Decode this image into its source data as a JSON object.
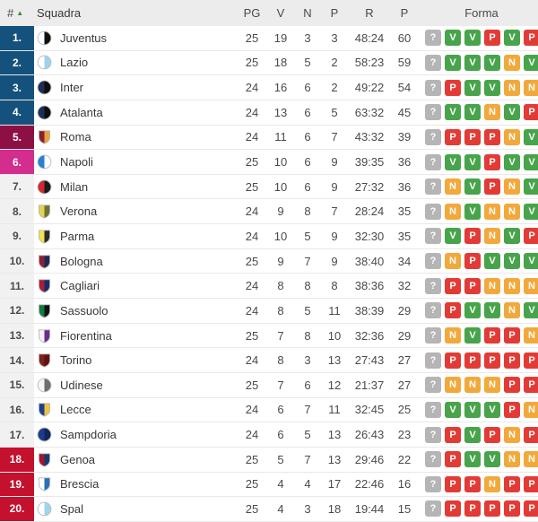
{
  "table": {
    "header": {
      "num": "#",
      "sort_icon": "▲",
      "team": "Squadra",
      "pg": "PG",
      "v": "V",
      "n": "N",
      "p": "P",
      "r": "R",
      "pts": "P",
      "form": "Forma"
    },
    "colors": {
      "sort_arrow": "#44883c",
      "zone_colors": {
        "blue": "#14527d",
        "maroon": "#8d1044",
        "magenta": "#d32d8d",
        "red": "#c3112e"
      },
      "form_colors": {
        "?": "#b5b5b5",
        "V": "#47a44b",
        "N": "#f2a93b",
        "P": "#e23b35"
      }
    },
    "standings": [
      {
        "pos": "1.",
        "zone": "blue",
        "team": "Juventus",
        "logo_shape": "circle",
        "logo_colors": [
          "#ffffff",
          "#111111"
        ],
        "pg": "25",
        "v": "19",
        "n": "3",
        "p": "3",
        "r": "48:24",
        "pts": "60",
        "form": [
          "?",
          "V",
          "V",
          "P",
          "V",
          "P"
        ]
      },
      {
        "pos": "2.",
        "zone": "blue",
        "team": "Lazio",
        "logo_shape": "circle",
        "logo_colors": [
          "#ffffff",
          "#9ed3f0"
        ],
        "pg": "25",
        "v": "18",
        "n": "5",
        "p": "2",
        "r": "58:23",
        "pts": "59",
        "form": [
          "?",
          "V",
          "V",
          "V",
          "N",
          "V"
        ]
      },
      {
        "pos": "3.",
        "zone": "blue",
        "team": "Inter",
        "logo_shape": "circle",
        "logo_colors": [
          "#1b2c55",
          "#0e0e0e"
        ],
        "pg": "24",
        "v": "16",
        "n": "6",
        "p": "2",
        "r": "49:22",
        "pts": "54",
        "form": [
          "?",
          "P",
          "V",
          "V",
          "N",
          "N"
        ]
      },
      {
        "pos": "4.",
        "zone": "blue",
        "team": "Atalanta",
        "logo_shape": "circle",
        "logo_colors": [
          "#1c2d57",
          "#0d0d0d"
        ],
        "pg": "24",
        "v": "13",
        "n": "6",
        "p": "5",
        "r": "63:32",
        "pts": "45",
        "form": [
          "?",
          "V",
          "V",
          "N",
          "V",
          "P"
        ]
      },
      {
        "pos": "5.",
        "zone": "maroon",
        "team": "Roma",
        "logo_shape": "shield",
        "logo_colors": [
          "#8f1f2c",
          "#e8a33d"
        ],
        "pg": "24",
        "v": "11",
        "n": "6",
        "p": "7",
        "r": "43:32",
        "pts": "39",
        "form": [
          "?",
          "P",
          "P",
          "P",
          "N",
          "V"
        ]
      },
      {
        "pos": "6.",
        "zone": "magenta",
        "team": "Napoli",
        "logo_shape": "circle",
        "logo_colors": [
          "#2a7fd4",
          "#ffffff"
        ],
        "pg": "25",
        "v": "10",
        "n": "6",
        "p": "9",
        "r": "39:35",
        "pts": "36",
        "form": [
          "?",
          "V",
          "V",
          "P",
          "V",
          "V"
        ]
      },
      {
        "pos": "7.",
        "zone": null,
        "team": "Milan",
        "logo_shape": "circle",
        "logo_colors": [
          "#d22631",
          "#1a1a1a"
        ],
        "pg": "25",
        "v": "10",
        "n": "6",
        "p": "9",
        "r": "27:32",
        "pts": "36",
        "form": [
          "?",
          "N",
          "V",
          "P",
          "N",
          "V"
        ]
      },
      {
        "pos": "8.",
        "zone": null,
        "team": "Verona",
        "logo_shape": "shield",
        "logo_colors": [
          "#e3d34f",
          "#6b7232"
        ],
        "pg": "24",
        "v": "9",
        "n": "8",
        "p": "7",
        "r": "28:24",
        "pts": "35",
        "form": [
          "?",
          "N",
          "V",
          "N",
          "N",
          "V"
        ]
      },
      {
        "pos": "9.",
        "zone": null,
        "team": "Parma",
        "logo_shape": "shield",
        "logo_colors": [
          "#f2e24e",
          "#2a2a2a"
        ],
        "pg": "24",
        "v": "10",
        "n": "5",
        "p": "9",
        "r": "32:30",
        "pts": "35",
        "form": [
          "?",
          "V",
          "P",
          "N",
          "V",
          "P"
        ]
      },
      {
        "pos": "10.",
        "zone": null,
        "team": "Bologna",
        "logo_shape": "shield",
        "logo_colors": [
          "#8f1f35",
          "#1b2a52"
        ],
        "pg": "25",
        "v": "9",
        "n": "7",
        "p": "9",
        "r": "38:40",
        "pts": "34",
        "form": [
          "?",
          "N",
          "P",
          "V",
          "V",
          "V"
        ]
      },
      {
        "pos": "11.",
        "zone": null,
        "team": "Cagliari",
        "logo_shape": "shield",
        "logo_colors": [
          "#a32035",
          "#1b2a6b"
        ],
        "pg": "24",
        "v": "8",
        "n": "8",
        "p": "8",
        "r": "38:36",
        "pts": "32",
        "form": [
          "?",
          "P",
          "P",
          "N",
          "N",
          "N"
        ]
      },
      {
        "pos": "12.",
        "zone": null,
        "team": "Sassuolo",
        "logo_shape": "shield",
        "logo_colors": [
          "#0e7c3f",
          "#111111"
        ],
        "pg": "24",
        "v": "8",
        "n": "5",
        "p": "11",
        "r": "38:39",
        "pts": "29",
        "form": [
          "?",
          "P",
          "V",
          "V",
          "N",
          "V"
        ]
      },
      {
        "pos": "13.",
        "zone": null,
        "team": "Fiorentina",
        "logo_shape": "shield",
        "logo_colors": [
          "#f3f3f3",
          "#6a2c91"
        ],
        "pg": "25",
        "v": "7",
        "n": "8",
        "p": "10",
        "r": "32:36",
        "pts": "29",
        "form": [
          "?",
          "N",
          "V",
          "P",
          "P",
          "N"
        ]
      },
      {
        "pos": "14.",
        "zone": null,
        "team": "Torino",
        "logo_shape": "shield",
        "logo_colors": [
          "#7e2020",
          "#5e1212"
        ],
        "pg": "24",
        "v": "8",
        "n": "3",
        "p": "13",
        "r": "27:43",
        "pts": "27",
        "form": [
          "?",
          "P",
          "P",
          "P",
          "P",
          "P"
        ]
      },
      {
        "pos": "15.",
        "zone": null,
        "team": "Udinese",
        "logo_shape": "circle",
        "logo_colors": [
          "#f5f5f5",
          "#6e6e6e"
        ],
        "pg": "25",
        "v": "7",
        "n": "6",
        "p": "12",
        "r": "21:37",
        "pts": "27",
        "form": [
          "?",
          "N",
          "N",
          "N",
          "P",
          "P"
        ]
      },
      {
        "pos": "16.",
        "zone": null,
        "team": "Lecce",
        "logo_shape": "shield",
        "logo_colors": [
          "#1c3f8c",
          "#f0c239"
        ],
        "pg": "24",
        "v": "6",
        "n": "7",
        "p": "11",
        "r": "32:45",
        "pts": "25",
        "form": [
          "?",
          "V",
          "V",
          "V",
          "P",
          "N"
        ]
      },
      {
        "pos": "17.",
        "zone": null,
        "team": "Sampdoria",
        "logo_shape": "circle",
        "logo_colors": [
          "#1b3c8c",
          "#12265c"
        ],
        "pg": "24",
        "v": "6",
        "n": "5",
        "p": "13",
        "r": "26:43",
        "pts": "23",
        "form": [
          "?",
          "P",
          "V",
          "P",
          "N",
          "P"
        ]
      },
      {
        "pos": "18.",
        "zone": "red",
        "team": "Genoa",
        "logo_shape": "shield",
        "logo_colors": [
          "#a51430",
          "#123a6d"
        ],
        "pg": "25",
        "v": "5",
        "n": "7",
        "p": "13",
        "r": "29:46",
        "pts": "22",
        "form": [
          "?",
          "P",
          "V",
          "V",
          "N",
          "N"
        ]
      },
      {
        "pos": "19.",
        "zone": "red",
        "team": "Brescia",
        "logo_shape": "shield",
        "logo_colors": [
          "#ffffff",
          "#2b6fb5"
        ],
        "pg": "25",
        "v": "4",
        "n": "4",
        "p": "17",
        "r": "22:46",
        "pts": "16",
        "form": [
          "?",
          "P",
          "P",
          "N",
          "P",
          "P"
        ]
      },
      {
        "pos": "20.",
        "zone": "red",
        "team": "Spal",
        "logo_shape": "circle",
        "logo_colors": [
          "#ffffff",
          "#9fd4ee"
        ],
        "pg": "25",
        "v": "4",
        "n": "3",
        "p": "18",
        "r": "19:44",
        "pts": "15",
        "form": [
          "?",
          "P",
          "P",
          "P",
          "P",
          "P"
        ]
      }
    ]
  }
}
